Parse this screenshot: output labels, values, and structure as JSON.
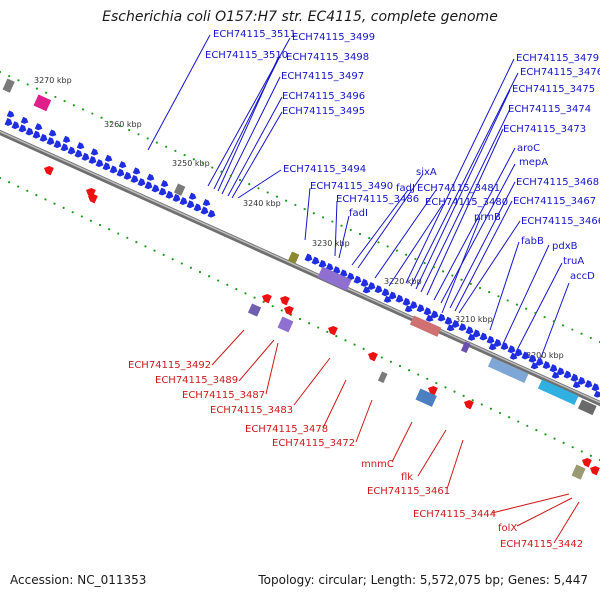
{
  "title": "Escherichia coli O157:H7 str. EC4115, complete genome",
  "footer": {
    "accession": "Accession: NC_011353",
    "summary": "Topology: circular; Length: 5,572,075 bp; Genes: 5,447"
  },
  "ticks": [
    "3270 kbp",
    "3260 kbp",
    "3250 kbp",
    "3240 kbp",
    "3230 kbp",
    "3220 kbp",
    "3210 kbp",
    "3200 kbp"
  ],
  "forward_labels": [
    "ECH74115_3511",
    "ECH74115_3499",
    "ECH74115_3510",
    "ECH74115_3498",
    "ECH74115_3497",
    "ECH74115_3496",
    "ECH74115_3495",
    "ECH74115_3494",
    "ECH74115_3490",
    "ECH74115_3486",
    "fadI",
    "fadJ",
    "sixA",
    "ECH74115_3481",
    "ECH74115_3480",
    "prmB",
    "ECH74115_3479",
    "ECH74115_3476",
    "ECH74115_3475",
    "ECH74115_3474",
    "ECH74115_3473",
    "aroC",
    "mepA",
    "ECH74115_3468",
    "ECH74115_3467",
    "ECH74115_3466",
    "fabB",
    "pdxB",
    "truA",
    "accD"
  ],
  "reverse_labels": [
    "ECH74115_3492",
    "ECH74115_3489",
    "ECH74115_3487",
    "ECH74115_3483",
    "ECH74115_3478",
    "ECH74115_3472",
    "mnmC",
    "flk",
    "ECH74115_3461",
    "ECH74115_3444",
    "folX",
    "ECH74115_3442"
  ],
  "colors": {
    "forward_label": "#1515c8",
    "reverse_label": "#cc1a1a",
    "cds": "#1f2ee0",
    "reverse_feature": "#ee1111",
    "backbone": "#7a7a7a",
    "dot_green": "#1f9a1f",
    "tick_label": "#333333"
  }
}
